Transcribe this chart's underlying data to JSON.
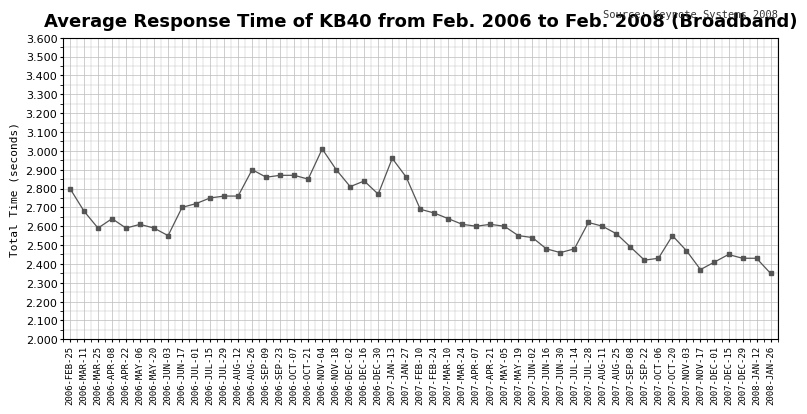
{
  "title": "Average Response Time of KB40 from Feb. 2006 to Feb. 2008 (Broadband)",
  "source_text": "Source: Keynote Systems 2008",
  "ylabel": "Total Time (seconds)",
  "ylim": [
    2.0,
    3.6
  ],
  "yticks": [
    2.0,
    2.1,
    2.2,
    2.3,
    2.4,
    2.5,
    2.6,
    2.7,
    2.8,
    2.9,
    3.0,
    3.1,
    3.2,
    3.3,
    3.4,
    3.5,
    3.6
  ],
  "labels": [
    "2006-FEB-25",
    "2006-MAR-11",
    "2006-MAR-25",
    "2006-APR-08",
    "2006-APR-22",
    "2006-MAY-06",
    "2006-MAY-20",
    "2006-JUN-03",
    "2006-JUN-17",
    "2006-JUL-01",
    "2006-JUL-15",
    "2006-JUL-29",
    "2006-AUG-12",
    "2006-AUG-26",
    "2006-SEP-09",
    "2006-SEP-23",
    "2006-OCT-07",
    "2006-OCT-21",
    "2006-NOV-04",
    "2006-NOV-18",
    "2006-DEC-02",
    "2006-DEC-16",
    "2006-DEC-30",
    "2007-JAN-13",
    "2007-JAN-27",
    "2007-FEB-10",
    "2007-FEB-24",
    "2007-MAR-10",
    "2007-MAR-24",
    "2007-APR-07",
    "2007-APR-21",
    "2007-MAY-05",
    "2007-MAY-19",
    "2007-JUN-02",
    "2007-JUN-16",
    "2007-JUN-30",
    "2007-JUL-14",
    "2007-JUL-28",
    "2007-AUG-11",
    "2007-AUG-25",
    "2007-SEP-08",
    "2007-SEP-22",
    "2007-OCT-06",
    "2007-OCT-20",
    "2007-NOV-03",
    "2007-NOV-17",
    "2007-DEC-01",
    "2007-DEC-15",
    "2007-DEC-29",
    "2008-JAN-12",
    "2008-JAN-26"
  ],
  "values": [
    2.8,
    2.68,
    2.59,
    2.64,
    2.59,
    2.61,
    2.59,
    2.55,
    2.7,
    2.72,
    2.75,
    2.76,
    2.76,
    2.9,
    2.86,
    2.87,
    2.87,
    2.85,
    3.01,
    2.9,
    2.81,
    2.84,
    2.77,
    2.96,
    2.86,
    2.69,
    2.67,
    2.64,
    2.61,
    2.6,
    2.61,
    2.6,
    2.55,
    2.54,
    2.48,
    2.46,
    2.48,
    2.62,
    2.6,
    2.56,
    2.49,
    2.42,
    2.43,
    2.55,
    2.47,
    2.37,
    2.41,
    2.45,
    2.43,
    2.43,
    2.35
  ],
  "line_color": "#555555",
  "marker": "s",
  "marker_size": 2.5,
  "line_width": 0.9,
  "grid_color": "#bbbbbb",
  "bg_color": "#ffffff",
  "title_fontsize": 13,
  "label_fontsize": 6.5,
  "ylabel_fontsize": 8,
  "source_fontsize": 7.5,
  "ytick_fontsize": 8
}
